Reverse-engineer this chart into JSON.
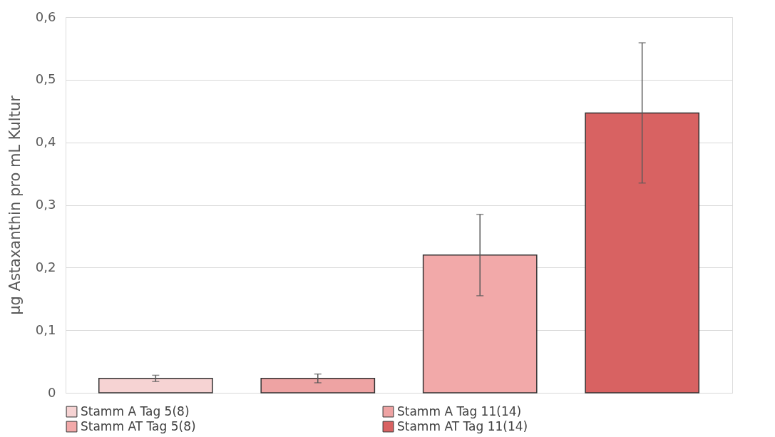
{
  "chart_data": {
    "type": "bar",
    "ylabel": "µg Astaxanthin pro mL Kultur",
    "categories": [
      null
    ],
    "series": [
      {
        "name": "Stamm A Tag 5(8)",
        "color": "#f6d3d3",
        "values": [
          0.023
        ],
        "errors": [
          0.005
        ]
      },
      {
        "name": "Stamm A Tag 11(14)",
        "color": "#eea3a3",
        "values": [
          0.023
        ],
        "errors": [
          0.007
        ]
      },
      {
        "name": "Stamm AT Tag 5(8)",
        "color": "#f2a9a9",
        "values": [
          0.22
        ],
        "errors": [
          0.065
        ]
      },
      {
        "name": "Stamm AT Tag 11(14)",
        "color": "#d86262",
        "values": [
          0.447
        ],
        "errors": [
          0.112
        ]
      }
    ],
    "ylim": [
      0,
      0.6
    ],
    "yticks": [
      {
        "value": 0,
        "label": "0"
      },
      {
        "value": 0.1,
        "label": "0,1"
      },
      {
        "value": 0.2,
        "label": "0,2"
      },
      {
        "value": 0.3,
        "label": "0,3"
      },
      {
        "value": 0.4,
        "label": "0,4"
      },
      {
        "value": 0.5,
        "label": "0,5"
      },
      {
        "value": 0.6,
        "label": "0,6"
      }
    ],
    "grid": "y",
    "legend": "bottom",
    "tick_labels": "y"
  }
}
